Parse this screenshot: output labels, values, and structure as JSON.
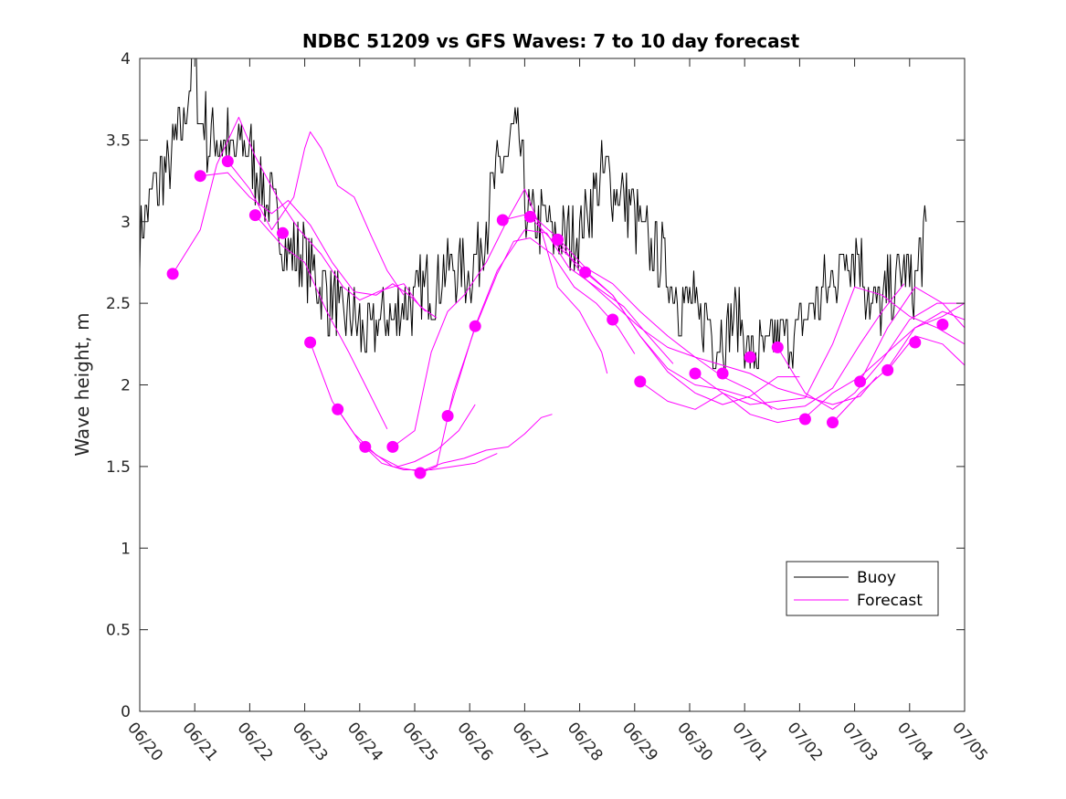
{
  "chart_data": {
    "type": "line",
    "title": "NDBC 51209 vs GFS Waves: 7 to 10 day forecast",
    "xlabel": "",
    "ylabel": "Wave height, m",
    "x_unit": "days from 06/20",
    "xlim": [
      0,
      15
    ],
    "ylim": [
      0,
      4
    ],
    "x_ticks": [
      0,
      1,
      2,
      3,
      4,
      5,
      6,
      7,
      8,
      9,
      10,
      11,
      12,
      13,
      14,
      15
    ],
    "x_tick_labels": [
      "06/20",
      "06/21",
      "06/22",
      "06/23",
      "06/24",
      "06/25",
      "06/26",
      "06/27",
      "06/28",
      "06/29",
      "06/30",
      "07/01",
      "07/02",
      "07/03",
      "07/04",
      "07/05"
    ],
    "y_ticks": [
      0,
      0.5,
      1,
      1.5,
      2,
      2.5,
      3,
      3.5,
      4
    ],
    "y_tick_labels": [
      "0",
      "0.5",
      "1",
      "1.5",
      "2",
      "2.5",
      "3",
      "3.5",
      "4"
    ],
    "grid": false,
    "legend_placement": "bottom-right",
    "colors": {
      "buoy": "#000000",
      "forecast": "#ff00ff"
    },
    "buoy": {
      "name": "Buoy",
      "x": [
        0.0,
        0.25,
        0.5,
        0.7,
        0.8,
        0.9,
        1.0,
        1.1,
        1.3,
        1.5,
        1.7,
        1.9,
        2.0,
        2.15,
        2.3,
        2.5,
        2.7,
        2.9,
        3.1,
        3.3,
        3.5,
        3.7,
        3.9,
        4.1,
        4.3,
        4.5,
        4.7,
        4.9,
        5.1,
        5.3,
        5.5,
        5.7,
        5.9,
        6.1,
        6.3,
        6.5,
        6.7,
        6.8,
        6.9,
        7.0,
        7.1,
        7.3,
        7.5,
        7.7,
        7.9,
        8.1,
        8.3,
        8.5,
        8.7,
        8.9,
        9.1,
        9.3,
        9.5,
        9.7,
        9.9,
        10.1,
        10.3,
        10.5,
        10.7,
        10.9,
        11.1,
        11.3,
        11.5,
        11.7,
        11.9,
        12.1,
        12.3,
        12.5,
        12.7,
        12.9,
        13.1,
        13.3,
        13.5,
        13.7,
        13.9,
        14.1,
        14.2,
        14.3
      ],
      "y": [
        2.9,
        3.2,
        3.3,
        3.5,
        3.6,
        3.8,
        4.0,
        3.6,
        3.5,
        3.5,
        3.4,
        3.5,
        3.4,
        3.3,
        3.1,
        3.0,
        2.8,
        2.8,
        2.7,
        2.6,
        2.5,
        2.4,
        2.4,
        2.3,
        2.35,
        2.4,
        2.45,
        2.5,
        2.55,
        2.6,
        2.65,
        2.7,
        2.7,
        2.75,
        3.0,
        3.3,
        3.4,
        3.5,
        3.5,
        3.2,
        3.0,
        3.0,
        2.95,
        2.9,
        2.85,
        3.0,
        3.2,
        3.3,
        3.2,
        3.1,
        3.0,
        2.8,
        2.8,
        2.6,
        2.5,
        2.45,
        2.4,
        2.3,
        2.35,
        2.4,
        2.2,
        2.2,
        2.25,
        2.3,
        2.3,
        2.4,
        2.5,
        2.6,
        2.7,
        2.8,
        2.8,
        2.5,
        2.5,
        2.6,
        2.7,
        2.6,
        2.8,
        2.9
      ]
    },
    "forecast": {
      "name": "Forecast",
      "markers": {
        "x": [
          0.6,
          1.1,
          1.6,
          2.1,
          2.6,
          3.1,
          3.6,
          4.1,
          4.6,
          5.1,
          5.6,
          6.1,
          6.6,
          7.1,
          7.6,
          8.1,
          8.6,
          9.1,
          10.1,
          10.6,
          11.1,
          11.6,
          12.1,
          12.6,
          13.1,
          13.6,
          14.1,
          14.6
        ],
        "y": [
          2.68,
          3.28,
          3.37,
          3.04,
          2.93,
          2.26,
          1.85,
          1.62,
          1.62,
          1.46,
          1.81,
          2.36,
          3.01,
          3.03,
          2.89,
          2.69,
          2.4,
          2.02,
          2.07,
          2.07,
          2.17,
          2.23,
          1.79,
          1.77,
          2.02,
          2.09,
          2.26,
          2.37
        ]
      },
      "runs": [
        {
          "x": [
            0.6,
            1.1,
            1.4,
            1.8,
            2.1,
            2.5,
            2.9,
            3.3,
            3.7,
            4.0,
            4.4,
            4.8,
            5.1,
            5.4
          ],
          "y": [
            2.68,
            2.95,
            3.35,
            3.64,
            3.4,
            3.15,
            2.95,
            2.8,
            2.6,
            2.52,
            2.58,
            2.62,
            2.48,
            2.41
          ]
        },
        {
          "x": [
            1.1,
            1.6,
            2.0,
            2.4,
            2.7,
            3.1,
            3.5,
            3.9,
            4.3,
            4.6,
            4.9,
            5.2
          ],
          "y": [
            3.28,
            3.3,
            3.15,
            3.05,
            3.13,
            2.98,
            2.75,
            2.57,
            2.55,
            2.62,
            2.55,
            2.45
          ]
        },
        {
          "x": [
            1.6,
            2.0,
            2.4,
            2.8,
            3.0,
            3.1,
            3.3,
            3.6,
            3.9,
            4.2,
            4.5,
            4.8
          ],
          "y": [
            3.37,
            3.2,
            2.95,
            3.15,
            3.45,
            3.55,
            3.45,
            3.22,
            3.15,
            2.92,
            2.7,
            2.55
          ]
        },
        {
          "x": [
            2.1,
            2.6,
            3.0,
            3.4,
            3.8,
            4.1,
            4.5
          ],
          "y": [
            3.04,
            2.85,
            2.75,
            2.45,
            2.2,
            2.0,
            1.73
          ]
        },
        {
          "x": [
            3.1,
            3.5,
            3.9,
            4.3,
            4.7,
            5.0,
            5.4,
            5.8,
            6.1
          ],
          "y": [
            2.26,
            1.9,
            1.7,
            1.57,
            1.5,
            1.53,
            1.6,
            1.72,
            1.88
          ]
        },
        {
          "x": [
            3.6,
            4.0,
            4.4,
            4.8,
            5.3,
            5.7,
            6.1,
            6.5
          ],
          "y": [
            1.85,
            1.65,
            1.52,
            1.48,
            1.48,
            1.5,
            1.52,
            1.58
          ]
        },
        {
          "x": [
            4.1,
            4.6,
            5.1,
            5.5,
            5.9,
            6.3,
            6.7,
            7.0,
            7.3,
            7.5
          ],
          "y": [
            1.62,
            1.5,
            1.47,
            1.52,
            1.55,
            1.6,
            1.62,
            1.7,
            1.8,
            1.82
          ]
        },
        {
          "x": [
            4.6,
            5.0,
            5.3,
            5.6,
            5.9,
            6.3,
            6.7,
            7.0,
            7.3,
            7.6,
            8.0,
            8.4,
            8.5
          ],
          "y": [
            1.62,
            1.72,
            2.2,
            2.45,
            2.55,
            2.75,
            3.02,
            3.2,
            2.95,
            2.6,
            2.45,
            2.2,
            2.07
          ]
        },
        {
          "x": [
            5.1,
            5.4,
            5.7,
            6.1,
            6.5,
            6.8,
            7.1,
            7.5,
            7.9,
            8.3,
            8.7,
            9.0
          ],
          "y": [
            1.46,
            1.5,
            1.95,
            2.35,
            2.68,
            2.88,
            2.9,
            2.8,
            2.6,
            2.5,
            2.35,
            2.19
          ]
        },
        {
          "x": [
            5.6,
            6.1,
            6.5,
            7.0,
            7.4,
            7.8,
            8.3,
            8.8,
            9.2,
            9.7
          ],
          "y": [
            1.81,
            2.36,
            2.7,
            2.95,
            2.93,
            2.72,
            2.6,
            2.48,
            2.32,
            2.13
          ]
        },
        {
          "x": [
            6.6,
            7.1,
            7.6,
            8.1,
            8.6,
            9.1,
            9.6,
            10.1,
            10.6,
            11.1,
            11.5
          ],
          "y": [
            3.01,
            3.05,
            2.9,
            2.72,
            2.62,
            2.45,
            2.3,
            2.17,
            2.05,
            1.97,
            1.85
          ]
        },
        {
          "x": [
            7.1,
            7.6,
            8.1,
            8.6,
            9.1,
            9.6,
            10.1,
            10.6,
            11.1,
            11.6,
            12.0
          ],
          "y": [
            3.03,
            2.85,
            2.7,
            2.55,
            2.3,
            2.08,
            1.95,
            1.88,
            1.93,
            2.05,
            2.05
          ]
        },
        {
          "x": [
            7.6,
            8.1,
            8.6,
            9.1,
            9.6,
            10.1,
            10.6,
            11.1,
            11.6,
            12.1,
            12.6,
            13.1,
            13.4
          ],
          "y": [
            2.89,
            2.65,
            2.5,
            2.35,
            2.23,
            2.17,
            2.12,
            2.07,
            1.98,
            1.93,
            1.88,
            1.93,
            2.05
          ]
        },
        {
          "x": [
            8.1,
            8.6,
            9.1,
            9.6,
            10.1,
            10.6,
            11.1,
            11.6,
            12.1,
            12.6,
            13.1,
            13.5,
            13.9
          ],
          "y": [
            2.69,
            2.55,
            2.3,
            2.1,
            2.0,
            1.97,
            1.92,
            1.85,
            1.87,
            1.98,
            2.25,
            2.45,
            2.62
          ]
        },
        {
          "x": [
            9.1,
            9.6,
            10.1,
            10.6,
            11.1,
            11.6,
            12.1,
            12.6,
            13.1,
            13.6,
            14.1,
            14.6,
            15.0
          ],
          "y": [
            2.02,
            1.9,
            1.85,
            1.95,
            1.82,
            1.77,
            1.8,
            1.95,
            2.05,
            2.2,
            2.35,
            2.42,
            2.5
          ]
        },
        {
          "x": [
            10.1,
            10.6,
            11.1,
            11.6,
            12.1,
            12.6,
            13.0,
            13.5,
            14.0,
            14.5,
            15.0
          ],
          "y": [
            2.07,
            1.95,
            1.88,
            1.9,
            1.92,
            2.25,
            2.6,
            2.55,
            2.42,
            2.35,
            2.25
          ]
        },
        {
          "x": [
            11.6,
            12.1,
            12.6,
            13.0,
            13.5,
            14.0,
            14.5,
            15.0
          ],
          "y": [
            2.23,
            1.95,
            1.85,
            1.95,
            2.15,
            2.4,
            2.5,
            2.5
          ]
        },
        {
          "x": [
            12.6,
            13.1,
            13.6,
            14.1,
            14.6,
            15.0
          ],
          "y": [
            1.77,
            1.95,
            2.1,
            2.35,
            2.45,
            2.4
          ]
        },
        {
          "x": [
            13.1,
            13.6,
            14.1,
            14.6,
            15.0
          ],
          "y": [
            2.02,
            2.35,
            2.6,
            2.5,
            2.35
          ]
        },
        {
          "x": [
            13.6,
            14.1,
            14.6,
            15.0
          ],
          "y": [
            2.09,
            2.3,
            2.25,
            2.12
          ]
        }
      ]
    },
    "legend": {
      "entries": [
        "Buoy",
        "Forecast"
      ]
    }
  }
}
